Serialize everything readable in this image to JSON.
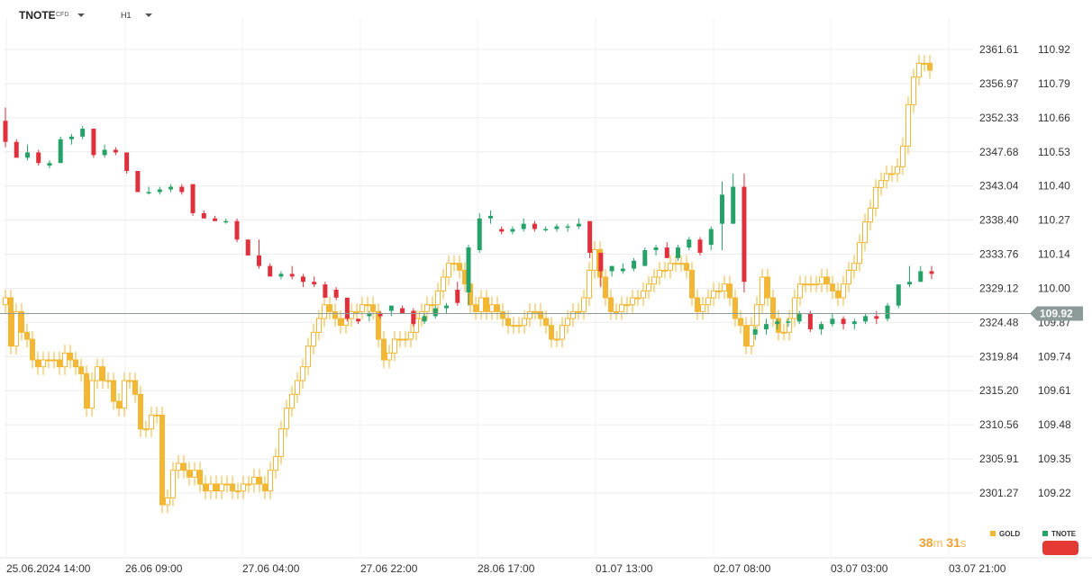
{
  "header": {
    "symbol": "TNOTE",
    "symbol_tag": "CFD",
    "timeframe": "H1"
  },
  "timer": {
    "minutes": "38",
    "minutes_unit": "m",
    "seconds": "31",
    "seconds_unit": "s"
  },
  "legend": [
    {
      "name": "GOLD",
      "color": "#f3b733"
    },
    {
      "name": "TNOTE",
      "color": "#26a269"
    }
  ],
  "chart_data": {
    "type": "candlestick",
    "x_tick_labels": [
      "25.06.2024  14:00",
      "26.06  09:00",
      "27.06  04:00",
      "27.06  22:00",
      "28.06  17:00",
      "01.07  13:00",
      "02.07  08:00",
      "03.07  03:00",
      "03.07  21:00"
    ],
    "gold_axis_labels": [
      "2361.61",
      "2356.97",
      "2352.33",
      "2347.68",
      "2343.04",
      "2338.40",
      "2333.76",
      "2329.12",
      "2324.48",
      "2319.84",
      "2315.20",
      "2310.56",
      "2305.91",
      "2301.27"
    ],
    "tnote_axis_labels": [
      "110.92",
      "110.79",
      "110.66",
      "110.53",
      "110.40",
      "110.27",
      "110.14",
      "110.00",
      "109.87",
      "109.74",
      "109.61",
      "109.48",
      "109.35",
      "109.22"
    ],
    "current_price": "109.92",
    "current_price_color": "#8c9a9a",
    "tnote_up_color": "#26a269",
    "tnote_down_color": "#e0303c",
    "gold_color": "#f3b733",
    "tnote_price_range": [
      109.24,
      110.92
    ],
    "gold_price_range": [
      2299.7,
      2364.0
    ],
    "series": [
      {
        "name": "TNOTE",
        "candles": [
          [
            110.65,
            110.7,
            110.55,
            110.57
          ],
          [
            110.57,
            110.58,
            110.51,
            110.51
          ],
          [
            110.51,
            110.56,
            110.5,
            110.53
          ],
          [
            110.53,
            110.54,
            110.48,
            110.49
          ],
          [
            110.48,
            110.5,
            110.47,
            110.49
          ],
          [
            110.49,
            110.59,
            110.49,
            110.58
          ],
          [
            110.58,
            110.6,
            110.56,
            110.59
          ],
          [
            110.59,
            110.63,
            110.58,
            110.62
          ],
          [
            110.62,
            110.62,
            110.51,
            110.52
          ],
          [
            110.52,
            110.56,
            110.51,
            110.54
          ],
          [
            110.54,
            110.55,
            110.52,
            110.53
          ],
          [
            110.53,
            110.53,
            110.45,
            110.46
          ],
          [
            110.46,
            110.46,
            110.38,
            110.38
          ],
          [
            110.38,
            110.4,
            110.37,
            110.38
          ],
          [
            110.38,
            110.4,
            110.37,
            110.39
          ],
          [
            110.39,
            110.41,
            110.38,
            110.4
          ],
          [
            110.4,
            110.41,
            110.37,
            110.38
          ],
          [
            110.41,
            110.41,
            110.29,
            110.3
          ],
          [
            110.3,
            110.31,
            110.28,
            110.28
          ],
          [
            110.28,
            110.29,
            110.27,
            110.27
          ],
          [
            110.27,
            110.28,
            110.26,
            110.27
          ],
          [
            110.27,
            110.28,
            110.19,
            110.2
          ],
          [
            110.2,
            110.2,
            110.14,
            110.14
          ],
          [
            110.14,
            110.2,
            110.09,
            110.1
          ],
          [
            110.1,
            110.11,
            110.06,
            110.06
          ],
          [
            110.06,
            110.08,
            110.05,
            110.07
          ],
          [
            110.07,
            110.1,
            110.05,
            110.06
          ],
          [
            110.06,
            110.07,
            110.02,
            110.04
          ],
          [
            110.04,
            110.06,
            110.02,
            110.03
          ],
          [
            110.03,
            110.04,
            109.98,
            109.98
          ],
          [
            110.01,
            110.02,
            109.97,
            109.98
          ],
          [
            109.98,
            109.98,
            109.89,
            109.9
          ],
          [
            109.9,
            109.9,
            109.88,
            109.89
          ],
          [
            109.91,
            109.93,
            109.89,
            109.92
          ],
          [
            109.92,
            109.93,
            109.9,
            109.91
          ],
          [
            109.93,
            109.95,
            109.91,
            109.95
          ],
          [
            109.94,
            109.95,
            109.92,
            109.92
          ],
          [
            109.93,
            109.94,
            109.87,
            109.88
          ],
          [
            109.89,
            109.92,
            109.88,
            109.91
          ],
          [
            109.91,
            109.95,
            109.9,
            109.94
          ],
          [
            109.94,
            109.96,
            109.92,
            109.95
          ],
          [
            110.01,
            110.04,
            109.95,
            109.96
          ],
          [
            110.0,
            110.18,
            109.95,
            110.17
          ],
          [
            110.16,
            110.3,
            110.15,
            110.28
          ],
          [
            110.28,
            110.31,
            110.26,
            110.29
          ],
          [
            110.24,
            110.25,
            110.22,
            110.23
          ],
          [
            110.23,
            110.25,
            110.22,
            110.24
          ],
          [
            110.24,
            110.28,
            110.23,
            110.26
          ],
          [
            110.26,
            110.27,
            110.23,
            110.24
          ],
          [
            110.24,
            110.25,
            110.23,
            110.24
          ],
          [
            110.24,
            110.26,
            110.23,
            110.25
          ],
          [
            110.25,
            110.26,
            110.23,
            110.25
          ],
          [
            110.25,
            110.28,
            110.24,
            110.26
          ],
          [
            110.27,
            110.27,
            110.13,
            110.15
          ],
          [
            110.15,
            110.15,
            110.02,
            110.08
          ],
          [
            110.08,
            110.1,
            110.06,
            110.1
          ],
          [
            110.08,
            110.11,
            110.07,
            110.09
          ],
          [
            110.09,
            110.13,
            110.08,
            110.12
          ],
          [
            110.1,
            110.17,
            110.1,
            110.16
          ],
          [
            110.16,
            110.18,
            110.14,
            110.17
          ],
          [
            110.17,
            110.19,
            110.13,
            110.13
          ],
          [
            110.13,
            110.18,
            110.12,
            110.17
          ],
          [
            110.17,
            110.21,
            110.16,
            110.2
          ],
          [
            110.2,
            110.21,
            110.14,
            110.15
          ],
          [
            110.18,
            110.25,
            110.16,
            110.24
          ],
          [
            110.26,
            110.42,
            110.16,
            110.37
          ],
          [
            110.26,
            110.45,
            110.26,
            110.4
          ],
          [
            110.4,
            110.45,
            110.0,
            110.04
          ],
          [
            109.84,
            109.87,
            109.82,
            109.86
          ],
          [
            109.86,
            109.9,
            109.84,
            109.88
          ],
          [
            109.88,
            109.9,
            109.86,
            109.89
          ],
          [
            109.89,
            109.9,
            109.87,
            109.89
          ],
          [
            109.89,
            109.93,
            109.88,
            109.92
          ],
          [
            109.92,
            109.93,
            109.85,
            109.86
          ],
          [
            109.86,
            109.89,
            109.84,
            109.88
          ],
          [
            109.88,
            109.92,
            109.87,
            109.9
          ],
          [
            109.9,
            109.91,
            109.86,
            109.88
          ],
          [
            109.88,
            109.9,
            109.86,
            109.89
          ],
          [
            109.89,
            109.92,
            109.88,
            109.91
          ],
          [
            109.91,
            109.93,
            109.88,
            109.9
          ],
          [
            109.9,
            109.96,
            109.89,
            109.95
          ],
          [
            109.95,
            110.03,
            109.94,
            110.03
          ],
          [
            110.03,
            110.1,
            110.02,
            110.04
          ],
          [
            110.04,
            110.1,
            110.04,
            110.08
          ],
          [
            110.08,
            110.1,
            110.05,
            110.07
          ]
        ]
      },
      {
        "name": "GOLD",
        "color": "#f3b733"
      }
    ]
  }
}
